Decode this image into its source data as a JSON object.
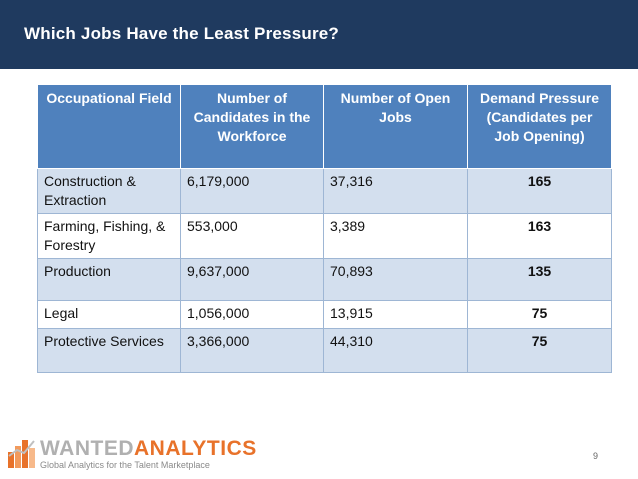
{
  "slide": {
    "title": "Which Jobs Have the Least Pressure?",
    "page_number": "9"
  },
  "table": {
    "headers": [
      "Occupational Field",
      "Number of Candidates in the Workforce",
      "Number of Open Jobs",
      "Demand Pressure (Candidates per Job Opening)"
    ],
    "rows": [
      [
        "Construction & Extraction",
        "6,179,000",
        "37,316",
        "165"
      ],
      [
        "Farming, Fishing, & Forestry",
        "553,000",
        "3,389",
        "163"
      ],
      [
        "Production",
        "9,637,000",
        "70,893",
        "135"
      ],
      [
        "Legal",
        "1,056,000",
        "13,915",
        "75"
      ],
      [
        "Protective Services",
        "3,366,000",
        "44,310",
        "75"
      ]
    ]
  },
  "logo": {
    "word_light": "WANTED",
    "word_accent": "ANALYTICS",
    "tagline": "Global Analytics for the Talent Marketplace"
  },
  "colors": {
    "title_bar": "#1f3a5f",
    "header_fill": "#4f81bd",
    "band_fill": "#d3dfee",
    "logo_accent": "#e8722a"
  }
}
